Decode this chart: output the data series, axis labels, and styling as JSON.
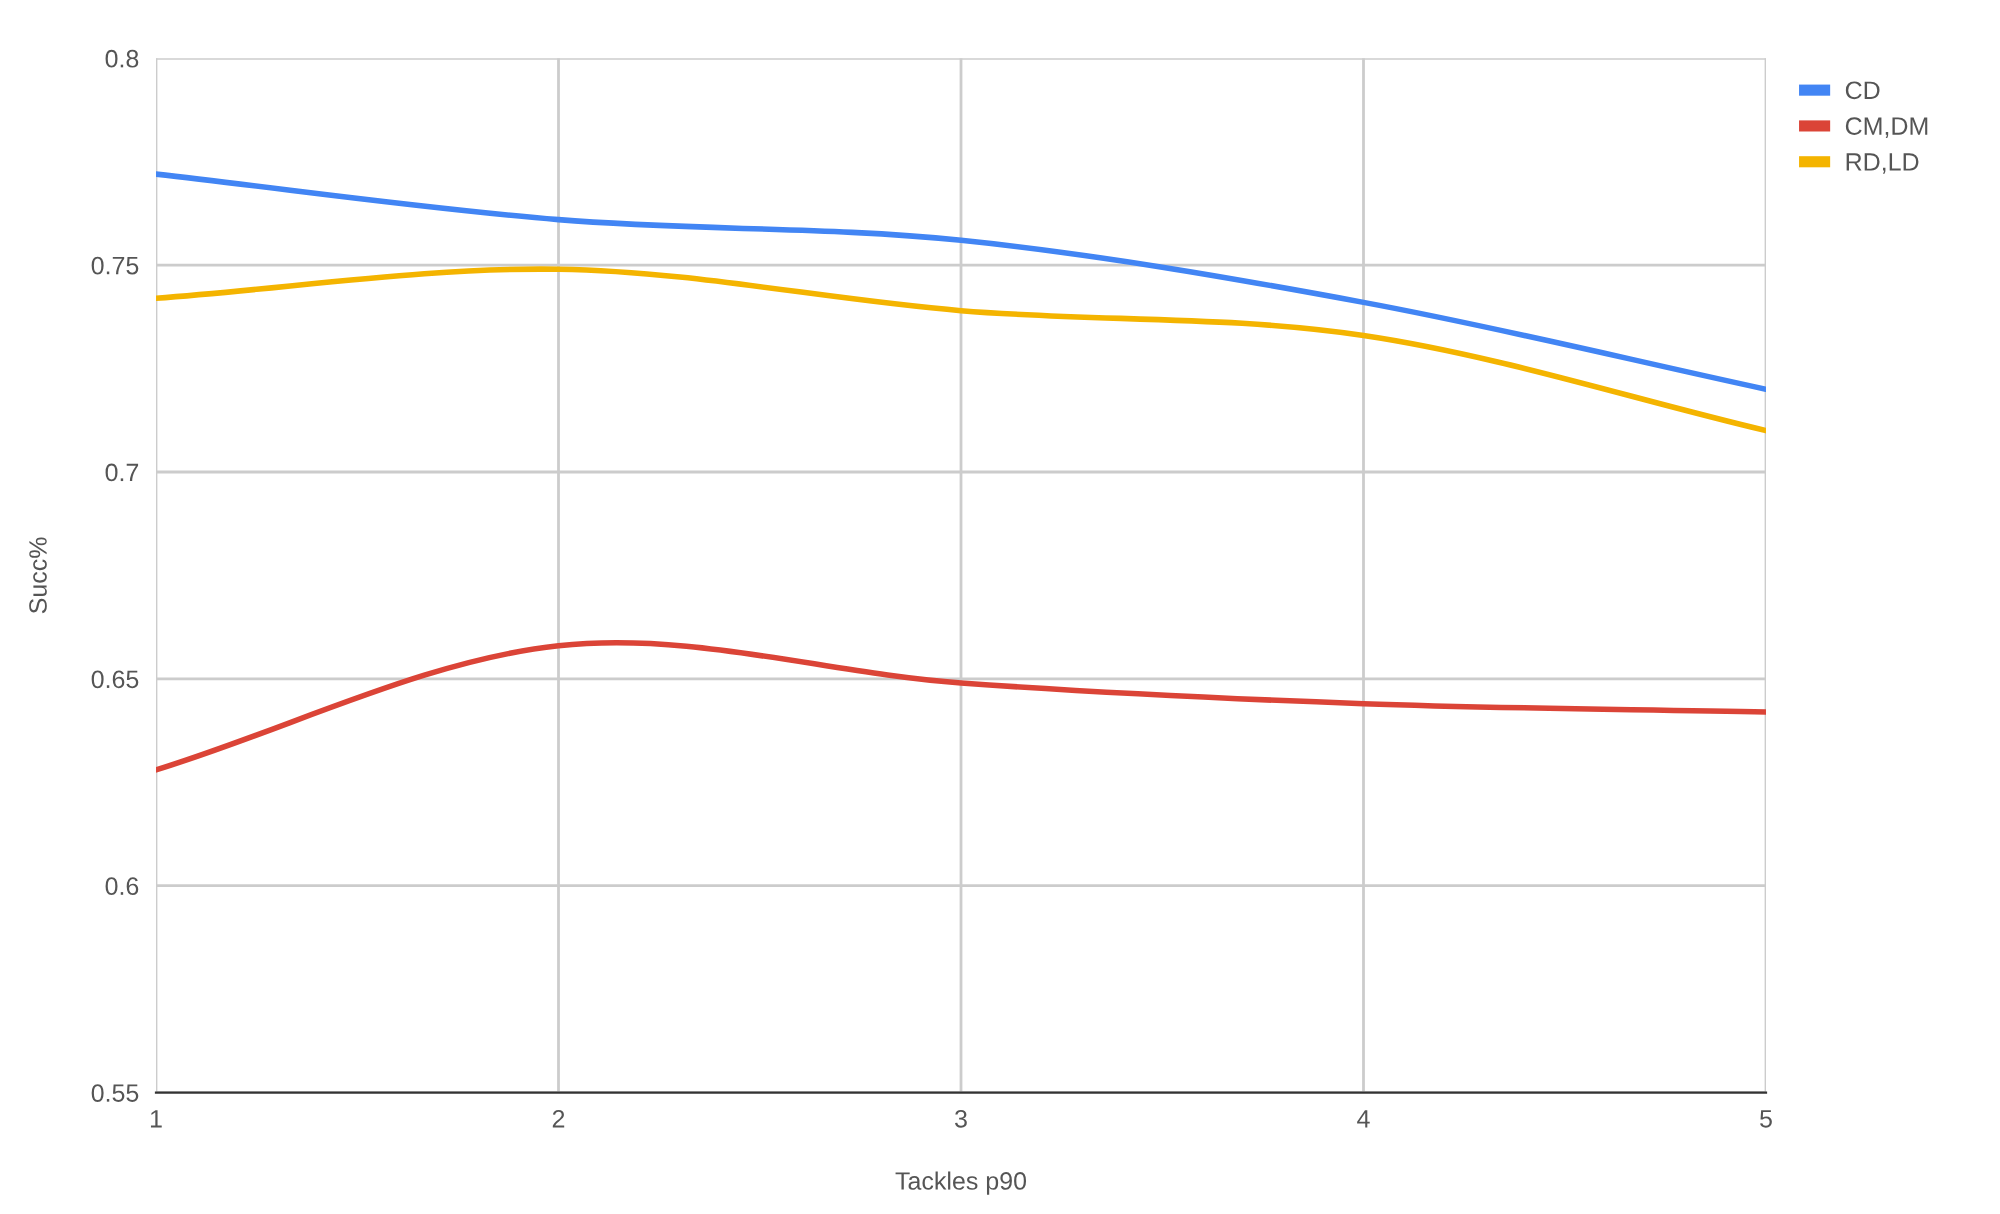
{
  "chart_data": {
    "type": "line",
    "xlabel": "Tackles p90",
    "ylabel": "Succ%",
    "x": [
      1,
      2,
      3,
      4,
      5
    ],
    "series": [
      {
        "name": "CD",
        "color": "#4285f4",
        "values": [
          0.772,
          0.761,
          0.756,
          0.741,
          0.72
        ]
      },
      {
        "name": "CM,DM",
        "color": "#db4437",
        "values": [
          0.628,
          0.658,
          0.649,
          0.644,
          0.642
        ]
      },
      {
        "name": "RD,LD",
        "color": "#f4b400",
        "values": [
          0.742,
          0.749,
          0.739,
          0.733,
          0.71
        ]
      }
    ],
    "xlim": [
      1,
      5
    ],
    "xticks": [
      1,
      2,
      3,
      4,
      5
    ],
    "ylim": [
      0.55,
      0.8
    ],
    "yticks": [
      0.55,
      0.6,
      0.65,
      0.7,
      0.75,
      0.8
    ],
    "grid": true,
    "legend": "top right",
    "marker": "none",
    "line_style": "solid"
  }
}
